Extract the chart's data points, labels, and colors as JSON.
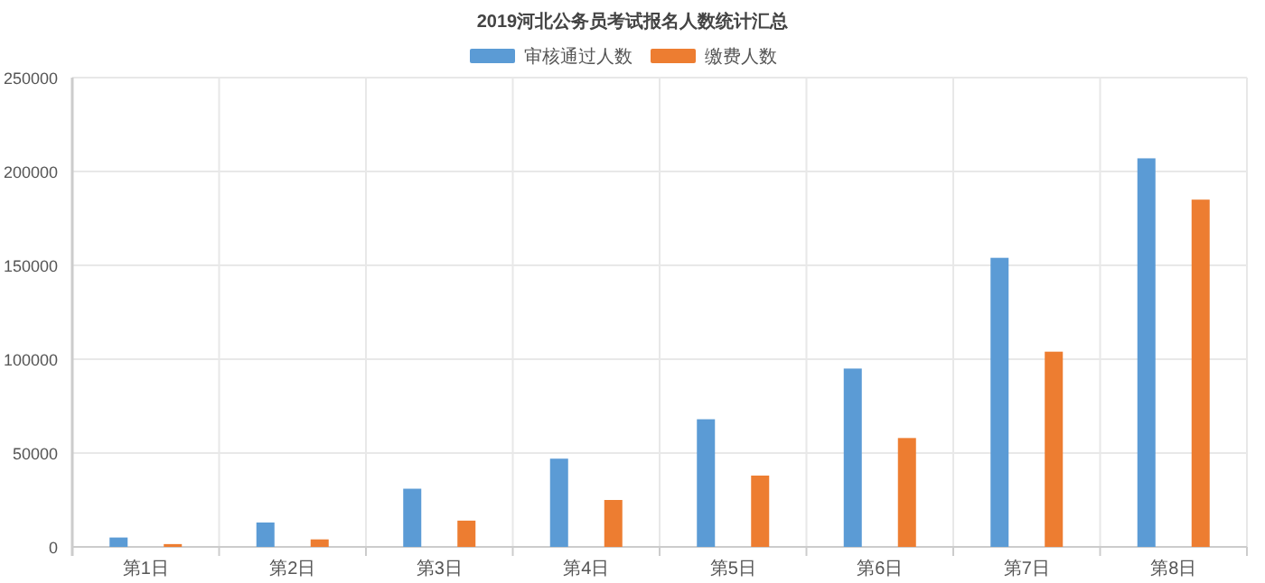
{
  "chart_data": {
    "type": "bar",
    "title": "2019河北公务员考试报名人数统计汇总",
    "categories": [
      "第1日",
      "第2日",
      "第3日",
      "第4日",
      "第5日",
      "第6日",
      "第7日",
      "第8日"
    ],
    "series": [
      {
        "name": "审核通过人数",
        "color": "#5b9bd5",
        "values": [
          5000,
          13000,
          31000,
          47000,
          68000,
          95000,
          154000,
          207000
        ]
      },
      {
        "name": "缴费人数",
        "color": "#ed7d31",
        "values": [
          1500,
          4000,
          14000,
          25000,
          38000,
          58000,
          104000,
          185000
        ]
      }
    ],
    "ylim": [
      0,
      250000
    ],
    "yticks": [
      0,
      50000,
      100000,
      150000,
      200000,
      250000
    ],
    "grid": true,
    "legend": "top"
  }
}
